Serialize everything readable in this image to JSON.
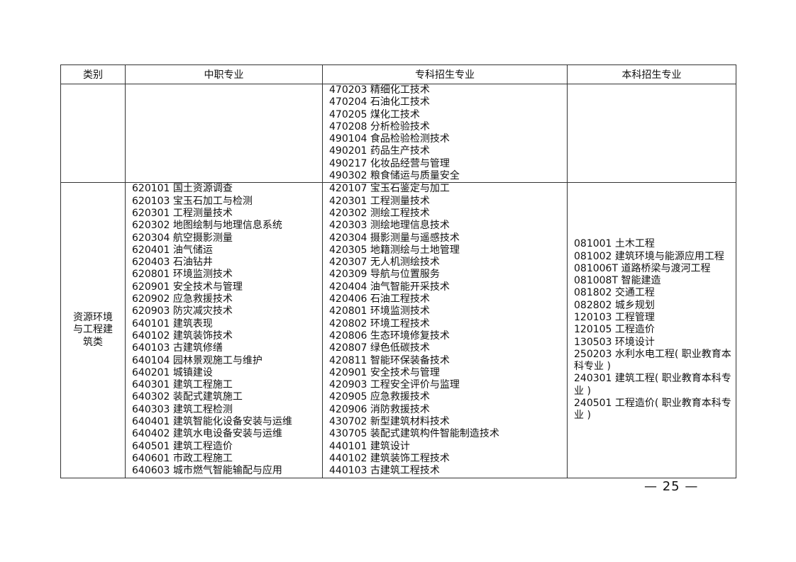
{
  "headers": [
    "类别",
    "中职专业",
    "专科招生专业",
    "本科招生专业"
  ],
  "rows": [
    {
      "category": "",
      "zhongzhi": [],
      "zhuanke": [
        "470203 精细化工技术",
        "470204 石油化工技术",
        "470205 煤化工技术",
        "470208 分析检验技术",
        "490104 食品检验检测技术",
        "490201 药品生产技术",
        "490217 化妆品经营与管理",
        "490302 粮食储运与质量安全"
      ],
      "benke": []
    },
    {
      "category": "资源环境与工程建筑类",
      "zhongzhi": [
        "620101 国土资源调查",
        "620103 宝玉石加工与检测",
        "620301 工程测量技术",
        "620302 地图绘制与地理信息系统",
        "620304 航空摄影测量",
        "620401 油气储运",
        "620403 石油钻井",
        "620801 环境监测技术",
        "620901 安全技术与管理",
        "620902 应急救援技术",
        "620903 防灾减灾技术",
        "640101 建筑表现",
        "640102 建筑装饰技术",
        "640103 古建筑修缮",
        "640104 园林景观施工与维护",
        "640201 城镇建设",
        "640301 建筑工程施工",
        "640302 装配式建筑施工",
        "640303 建筑工程检测",
        "640401 建筑智能化设备安装与运维",
        "640402 建筑水电设备安装与运维",
        "640501 建筑工程造价",
        "640601 市政工程施工",
        "640603 城市燃气智能输配与应用"
      ],
      "zhuanke": [
        "420107 宝玉石鉴定与加工",
        "420301 工程测量技术",
        "420302 测绘工程技术",
        "420303 测绘地理信息技术",
        "420304 摄影测量与遥感技术",
        "420305 地籍测绘与土地管理",
        "420307 无人机测绘技术",
        "420309 导航与位置服务",
        "420404 油气智能开采技术",
        "420406 石油工程技术",
        "420801 环境监测技术",
        "420802 环境工程技术",
        "420806 生态环境修复技术",
        "420807 绿色低碳技术",
        "420811 智能环保装备技术",
        "420901 安全技术与管理",
        "420903 工程安全评价与监理",
        "420905 应急救援技术",
        "420906 消防救援技术",
        "430702 新型建筑材料技术",
        "430705 装配式建筑构件智能制造技术",
        "440101 建筑设计",
        "440102 建筑装饰工程技术",
        "440103 古建筑工程技术"
      ],
      "benke": [
        "081001 土木工程",
        "081002 建筑环境与能源应用工程",
        "081006T 道路桥梁与渡河工程",
        "081008T 智能建造",
        "081802 交通工程",
        "082802 城乡规划",
        "120103 工程管理",
        "120105 工程造价",
        "130503 环境设计",
        "250203 水利水电工程( 职业教育本科专业 )",
        "240301 建筑工程( 职业教育本科专业 )",
        "240501 工程造价( 职业教育本科专业 )"
      ]
    }
  ],
  "page_number": "— 25 —"
}
